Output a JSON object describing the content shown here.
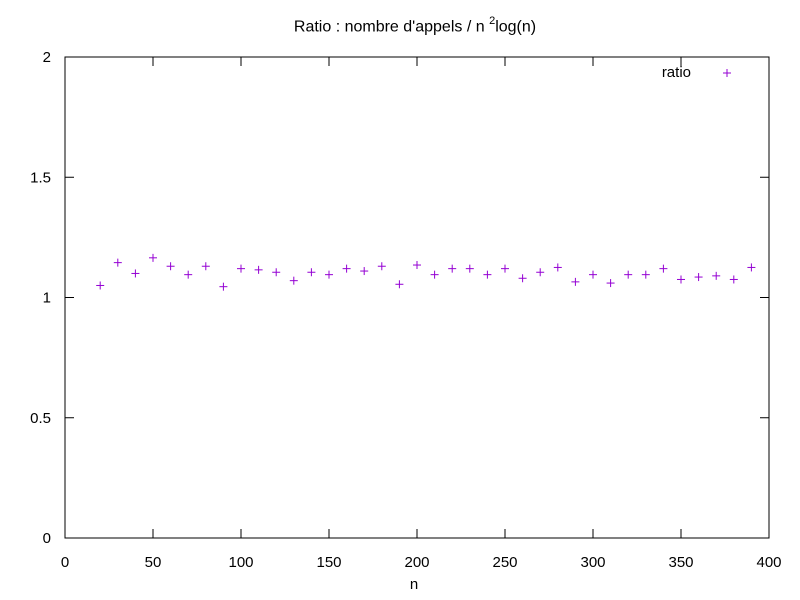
{
  "chart_data": {
    "type": "scatter",
    "title": {
      "prefix": "Ratio : nombre d'appels / n ",
      "sup": "2",
      "suffix": "log(n)"
    },
    "xlabel": "n",
    "ylabel": "",
    "xlim": [
      0,
      400
    ],
    "ylim": [
      0,
      2
    ],
    "xticks": [
      "0",
      "50",
      "100",
      "150",
      "200",
      "250",
      "300",
      "350",
      "400"
    ],
    "yticks": [
      "0",
      "0.5",
      "1",
      "1.5",
      "2"
    ],
    "grid": false,
    "legend_position": "top-right",
    "series": [
      {
        "name": "ratio",
        "color": "#9400d3",
        "marker": "plus",
        "x": [
          20,
          30,
          40,
          50,
          60,
          70,
          80,
          90,
          100,
          110,
          120,
          130,
          140,
          150,
          160,
          170,
          180,
          190,
          200,
          210,
          220,
          230,
          240,
          250,
          260,
          270,
          280,
          290,
          300,
          310,
          320,
          330,
          340,
          350,
          360,
          370,
          380,
          390
        ],
        "y": [
          1.05,
          1.145,
          1.1,
          1.165,
          1.13,
          1.095,
          1.13,
          1.045,
          1.12,
          1.115,
          1.105,
          1.07,
          1.105,
          1.095,
          1.12,
          1.11,
          1.13,
          1.055,
          1.135,
          1.095,
          1.12,
          1.12,
          1.095,
          1.12,
          1.08,
          1.105,
          1.125,
          1.065,
          1.095,
          1.06,
          1.095,
          1.095,
          1.12,
          1.075,
          1.085,
          1.09,
          1.075,
          1.125
        ]
      }
    ]
  }
}
